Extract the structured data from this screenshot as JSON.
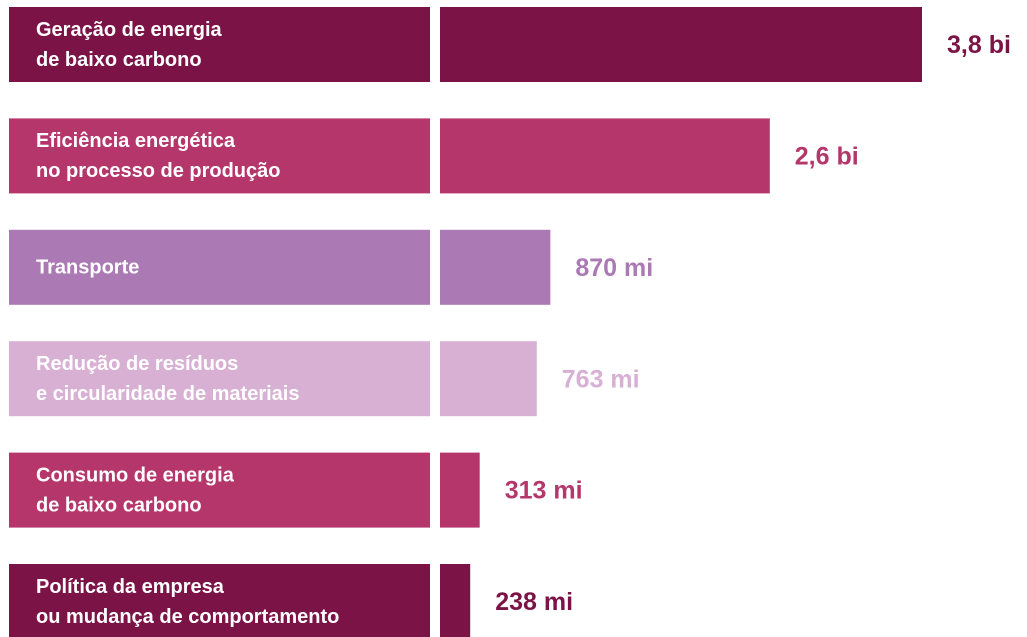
{
  "chart_data": {
    "type": "hbar",
    "categories": [
      [
        "Geração de energia",
        "de baixo carbono"
      ],
      [
        "Eficiência energética",
        "no processo de produção"
      ],
      [
        "Transporte"
      ],
      [
        "Redução de resíduos",
        "e circularidade de materiais"
      ],
      [
        "Consumo de energia",
        "de baixo carbono"
      ],
      [
        "Política da empresa",
        "ou mudança de comportamento"
      ]
    ],
    "values": [
      3800,
      2600,
      870,
      763,
      313,
      238
    ],
    "value_labels": [
      "3,8 bi",
      "2,6 bi",
      "870 mi",
      "763 mi",
      "313 mi",
      "238 mi"
    ],
    "colors": [
      "#7b1346",
      "#b5366b",
      "#ab7ab4",
      "#d8b0d4",
      "#b5366b",
      "#7b1346"
    ]
  }
}
